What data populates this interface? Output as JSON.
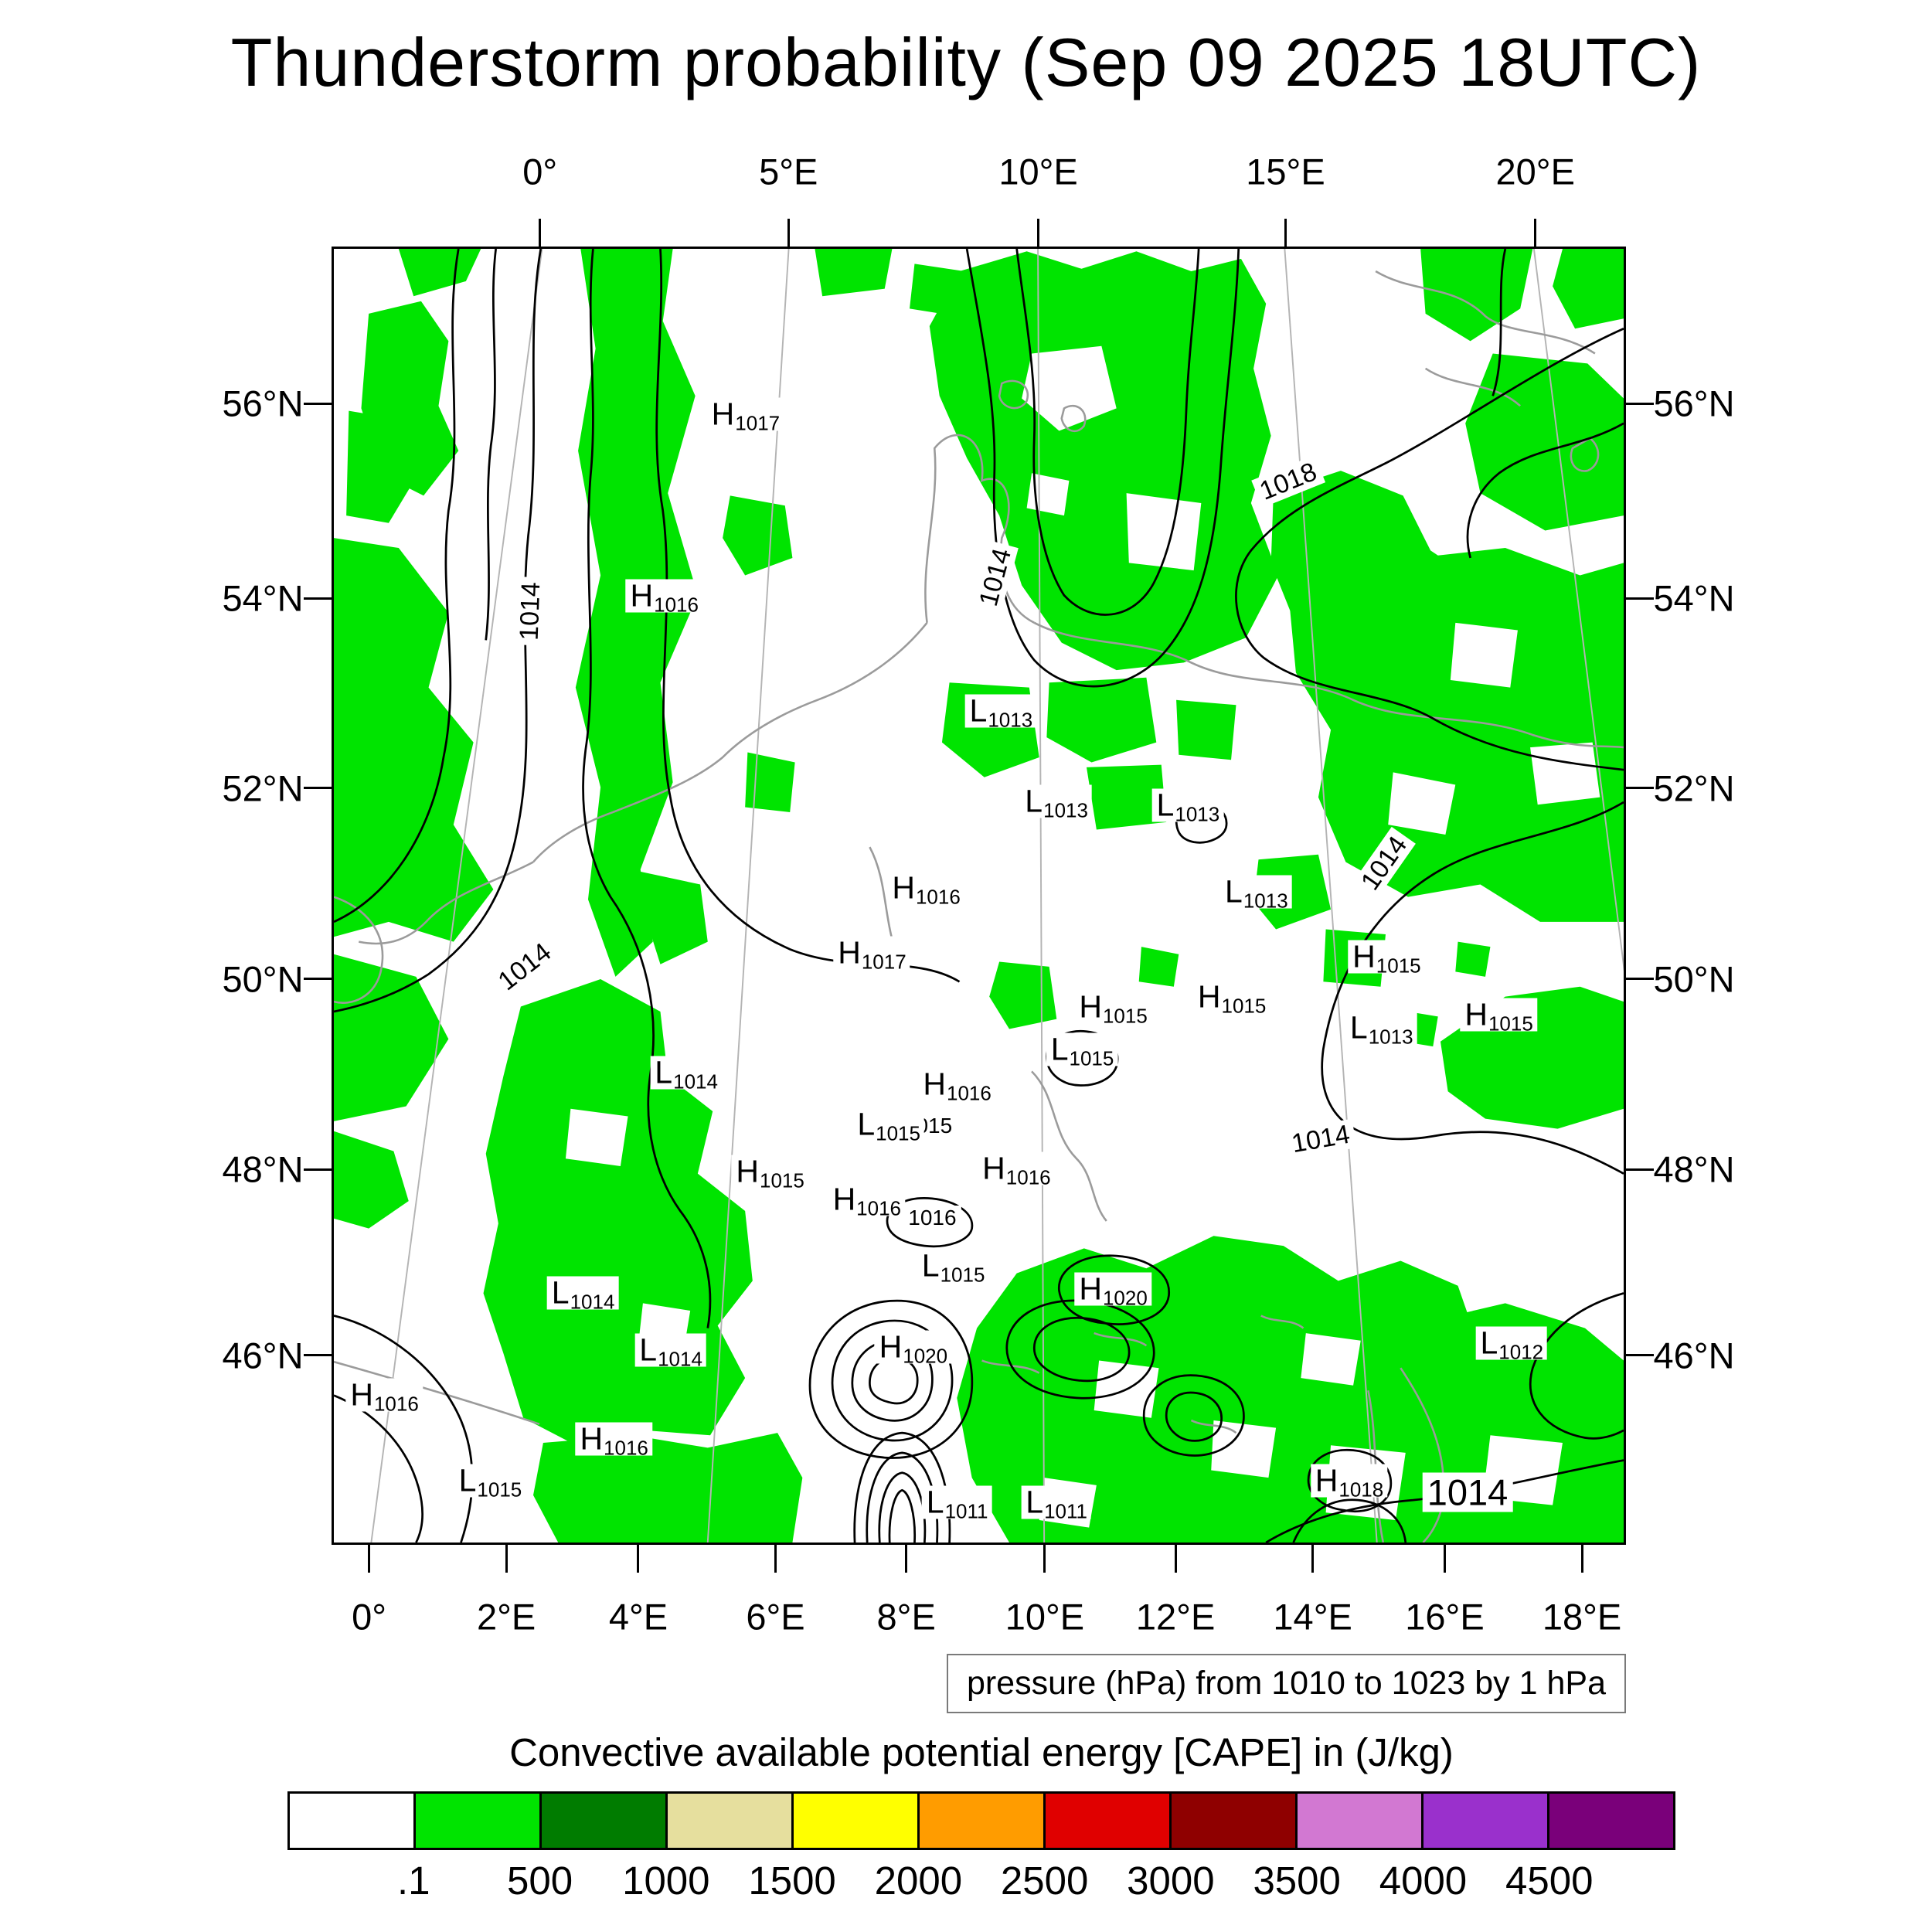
{
  "chart_data": {
    "type": "heatmap",
    "title": "Thunderstorm probability (Sep 09 2025 18UTC)",
    "pressure_caption": "pressure (hPa) from 1010 to 1023 by 1 hPa",
    "pressure_range": {
      "from": 1010,
      "to": 1023,
      "step_hPa": 1
    },
    "colorbar": {
      "title": "Convective available potential energy [CAPE] in (J/kg)",
      "tick_labels": [
        ".1",
        "500",
        "1000",
        "1500",
        "2000",
        "2500",
        "3000",
        "3500",
        "4000",
        "4500"
      ],
      "colors": [
        "#ffffff",
        "#00e400",
        "#007c00",
        "#e6df9e",
        "#ffff00",
        "#ff9c00",
        "#e00000",
        "#8f0000",
        "#d278d2",
        "#9a30cc",
        "#7a007a"
      ]
    },
    "axes": {
      "top_lon": [
        {
          "label": "0°",
          "pos": 16.1
        },
        {
          "label": "5°E",
          "pos": 35.3
        },
        {
          "label": "10°E",
          "pos": 54.6
        },
        {
          "label": "15°E",
          "pos": 73.7
        },
        {
          "label": "20°E",
          "pos": 93.0
        }
      ],
      "bottom_lon": [
        {
          "label": "0°",
          "pos": 2.9
        },
        {
          "label": "2°E",
          "pos": 13.5
        },
        {
          "label": "4°E",
          "pos": 23.7
        },
        {
          "label": "6°E",
          "pos": 34.3
        },
        {
          "label": "8°E",
          "pos": 44.4
        },
        {
          "label": "10°E",
          "pos": 55.1
        },
        {
          "label": "12°E",
          "pos": 65.2
        },
        {
          "label": "14°E",
          "pos": 75.8
        },
        {
          "label": "16°E",
          "pos": 86.0
        },
        {
          "label": "18°E",
          "pos": 96.6
        }
      ],
      "lat": [
        {
          "label": "56°N",
          "pos": 12.1
        },
        {
          "label": "54°N",
          "pos": 27.1
        },
        {
          "label": "52°N",
          "pos": 41.7
        },
        {
          "label": "50°N",
          "pos": 56.4
        },
        {
          "label": "48°N",
          "pos": 71.1
        },
        {
          "label": "46°N",
          "pos": 85.4
        }
      ]
    },
    "pressure_centers": [
      {
        "kind": "H",
        "value": "1017",
        "x": 31.9,
        "y": 12.8
      },
      {
        "kind": "H",
        "value": "1016",
        "x": 25.6,
        "y": 26.8
      },
      {
        "kind": "L",
        "value": "1013",
        "x": 51.7,
        "y": 35.7
      },
      {
        "kind": "L",
        "value": "1013",
        "x": 56.0,
        "y": 42.7
      },
      {
        "kind": "L",
        "value": "1013",
        "x": 66.2,
        "y": 43.0
      },
      {
        "kind": "L",
        "value": "1013",
        "x": 71.5,
        "y": 49.7
      },
      {
        "kind": "H",
        "value": "1016",
        "x": 45.9,
        "y": 49.4
      },
      {
        "kind": "H",
        "value": "1017",
        "x": 41.7,
        "y": 54.4
      },
      {
        "kind": "H",
        "value": "1015",
        "x": 81.6,
        "y": 54.7
      },
      {
        "kind": "H",
        "value": "1015",
        "x": 60.4,
        "y": 58.6
      },
      {
        "kind": "H",
        "value": "1015",
        "x": 69.6,
        "y": 57.8
      },
      {
        "kind": "L",
        "value": "1013",
        "x": 81.2,
        "y": 60.2
      },
      {
        "kind": "H",
        "value": "1015",
        "x": 90.3,
        "y": 59.2
      },
      {
        "kind": "L",
        "value": "1015",
        "x": 58.0,
        "y": 61.9
      },
      {
        "kind": "H",
        "value": "1016",
        "x": 48.3,
        "y": 64.6
      },
      {
        "kind": "L",
        "value": "1014",
        "x": 27.3,
        "y": 63.7
      },
      {
        "kind": "L",
        "value": "1015",
        "x": 43.0,
        "y": 67.7
      },
      {
        "kind": "H",
        "value": "1015",
        "x": 33.8,
        "y": 71.3
      },
      {
        "kind": "H",
        "value": "1016",
        "x": 52.9,
        "y": 71.1
      },
      {
        "kind": "H",
        "value": "1016",
        "x": 41.3,
        "y": 73.5
      },
      {
        "kind": "L",
        "value": "1015",
        "x": 48.0,
        "y": 78.6
      },
      {
        "kind": "H",
        "value": "1020",
        "x": 60.4,
        "y": 80.4
      },
      {
        "kind": "L",
        "value": "1014",
        "x": 19.3,
        "y": 80.7
      },
      {
        "kind": "L",
        "value": "1014",
        "x": 26.1,
        "y": 85.1
      },
      {
        "kind": "H",
        "value": "1020",
        "x": 44.9,
        "y": 84.9
      },
      {
        "kind": "H",
        "value": "1016",
        "x": 3.9,
        "y": 88.6
      },
      {
        "kind": "H",
        "value": "1016",
        "x": 21.7,
        "y": 92.0
      },
      {
        "kind": "L",
        "value": "1015",
        "x": 12.1,
        "y": 95.2
      },
      {
        "kind": "L",
        "value": "1011",
        "x": 48.3,
        "y": 96.9
      },
      {
        "kind": "L",
        "value": "1011",
        "x": 56.0,
        "y": 96.9
      },
      {
        "kind": "H",
        "value": "1018",
        "x": 78.7,
        "y": 95.2
      },
      {
        "kind": "L",
        "value": "1012",
        "x": 91.3,
        "y": 84.6
      }
    ],
    "isobar_labels": [
      {
        "text": "1018",
        "x": 74.0,
        "y": 18.0,
        "rot": -22,
        "size": "md"
      },
      {
        "text": "1014",
        "x": 51.3,
        "y": 25.4,
        "rot": -75,
        "size": "md"
      },
      {
        "text": "1014",
        "x": 15.2,
        "y": 28.0,
        "rot": -88,
        "size": "md"
      },
      {
        "text": "1014",
        "x": 81.4,
        "y": 47.5,
        "rot": -55,
        "size": "md"
      },
      {
        "text": "1014",
        "x": 14.8,
        "y": 55.5,
        "rot": -38,
        "size": "md"
      },
      {
        "text": "1014",
        "x": 76.5,
        "y": 68.8,
        "rot": -10,
        "size": "md"
      },
      {
        "text": "-1015",
        "x": 45.8,
        "y": 67.8,
        "rot": 0,
        "size": "sm"
      },
      {
        "text": "1016",
        "x": 46.4,
        "y": 74.9,
        "rot": 0,
        "size": "sm"
      },
      {
        "text": "1014",
        "x": 87.9,
        "y": 96.1,
        "rot": 0,
        "size": "lg"
      }
    ]
  },
  "colors": {
    "cape_green": "#00e400",
    "isobar": "#000000",
    "coastline": "#9b9b9b",
    "graticule": "#b4b4b4"
  }
}
